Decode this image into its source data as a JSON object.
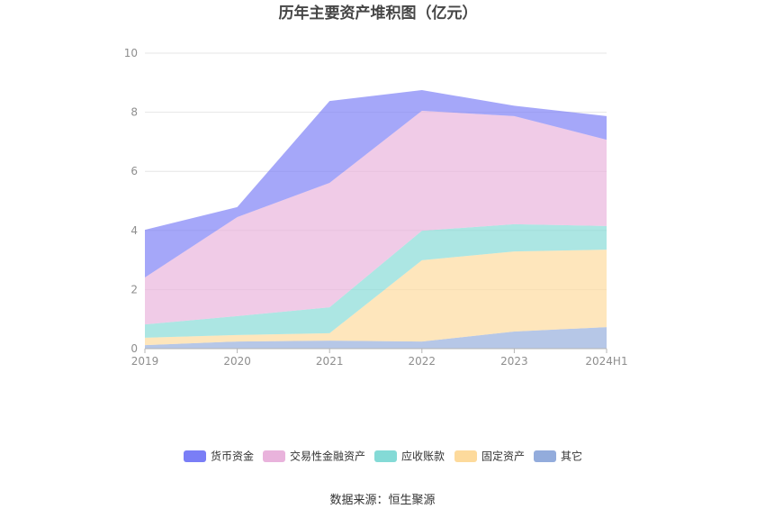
{
  "title": "历年主要资产堆积图（亿元）",
  "source": "数据来源：恒生聚源",
  "chart_data": {
    "type": "area",
    "stacked": true,
    "title": "历年主要资产堆积图（亿元）",
    "xlabel": "",
    "ylabel": "",
    "categories": [
      "2019",
      "2020",
      "2021",
      "2022",
      "2023",
      "2024H1"
    ],
    "ylim": [
      0,
      10
    ],
    "yticks": [
      0,
      2,
      4,
      6,
      8,
      10
    ],
    "grid": true,
    "legend_position": "bottom",
    "series": [
      {
        "name": "货币资金",
        "color": "#7a7ef6",
        "values": [
          1.61,
          0.34,
          2.77,
          0.7,
          0.35,
          0.8
        ]
      },
      {
        "name": "交易性金融资产",
        "color": "#e9b3dc",
        "values": [
          1.59,
          3.35,
          4.21,
          4.06,
          3.66,
          2.92
        ]
      },
      {
        "name": "应收账款",
        "color": "#84dad6",
        "values": [
          0.45,
          0.64,
          0.88,
          1.0,
          0.92,
          0.8
        ]
      },
      {
        "name": "固定资产",
        "color": "#fdda9c",
        "values": [
          0.25,
          0.22,
          0.25,
          2.75,
          2.71,
          2.62
        ]
      },
      {
        "name": "其它",
        "color": "#93acdc",
        "values": [
          0.12,
          0.24,
          0.27,
          0.24,
          0.58,
          0.73
        ]
      }
    ]
  }
}
